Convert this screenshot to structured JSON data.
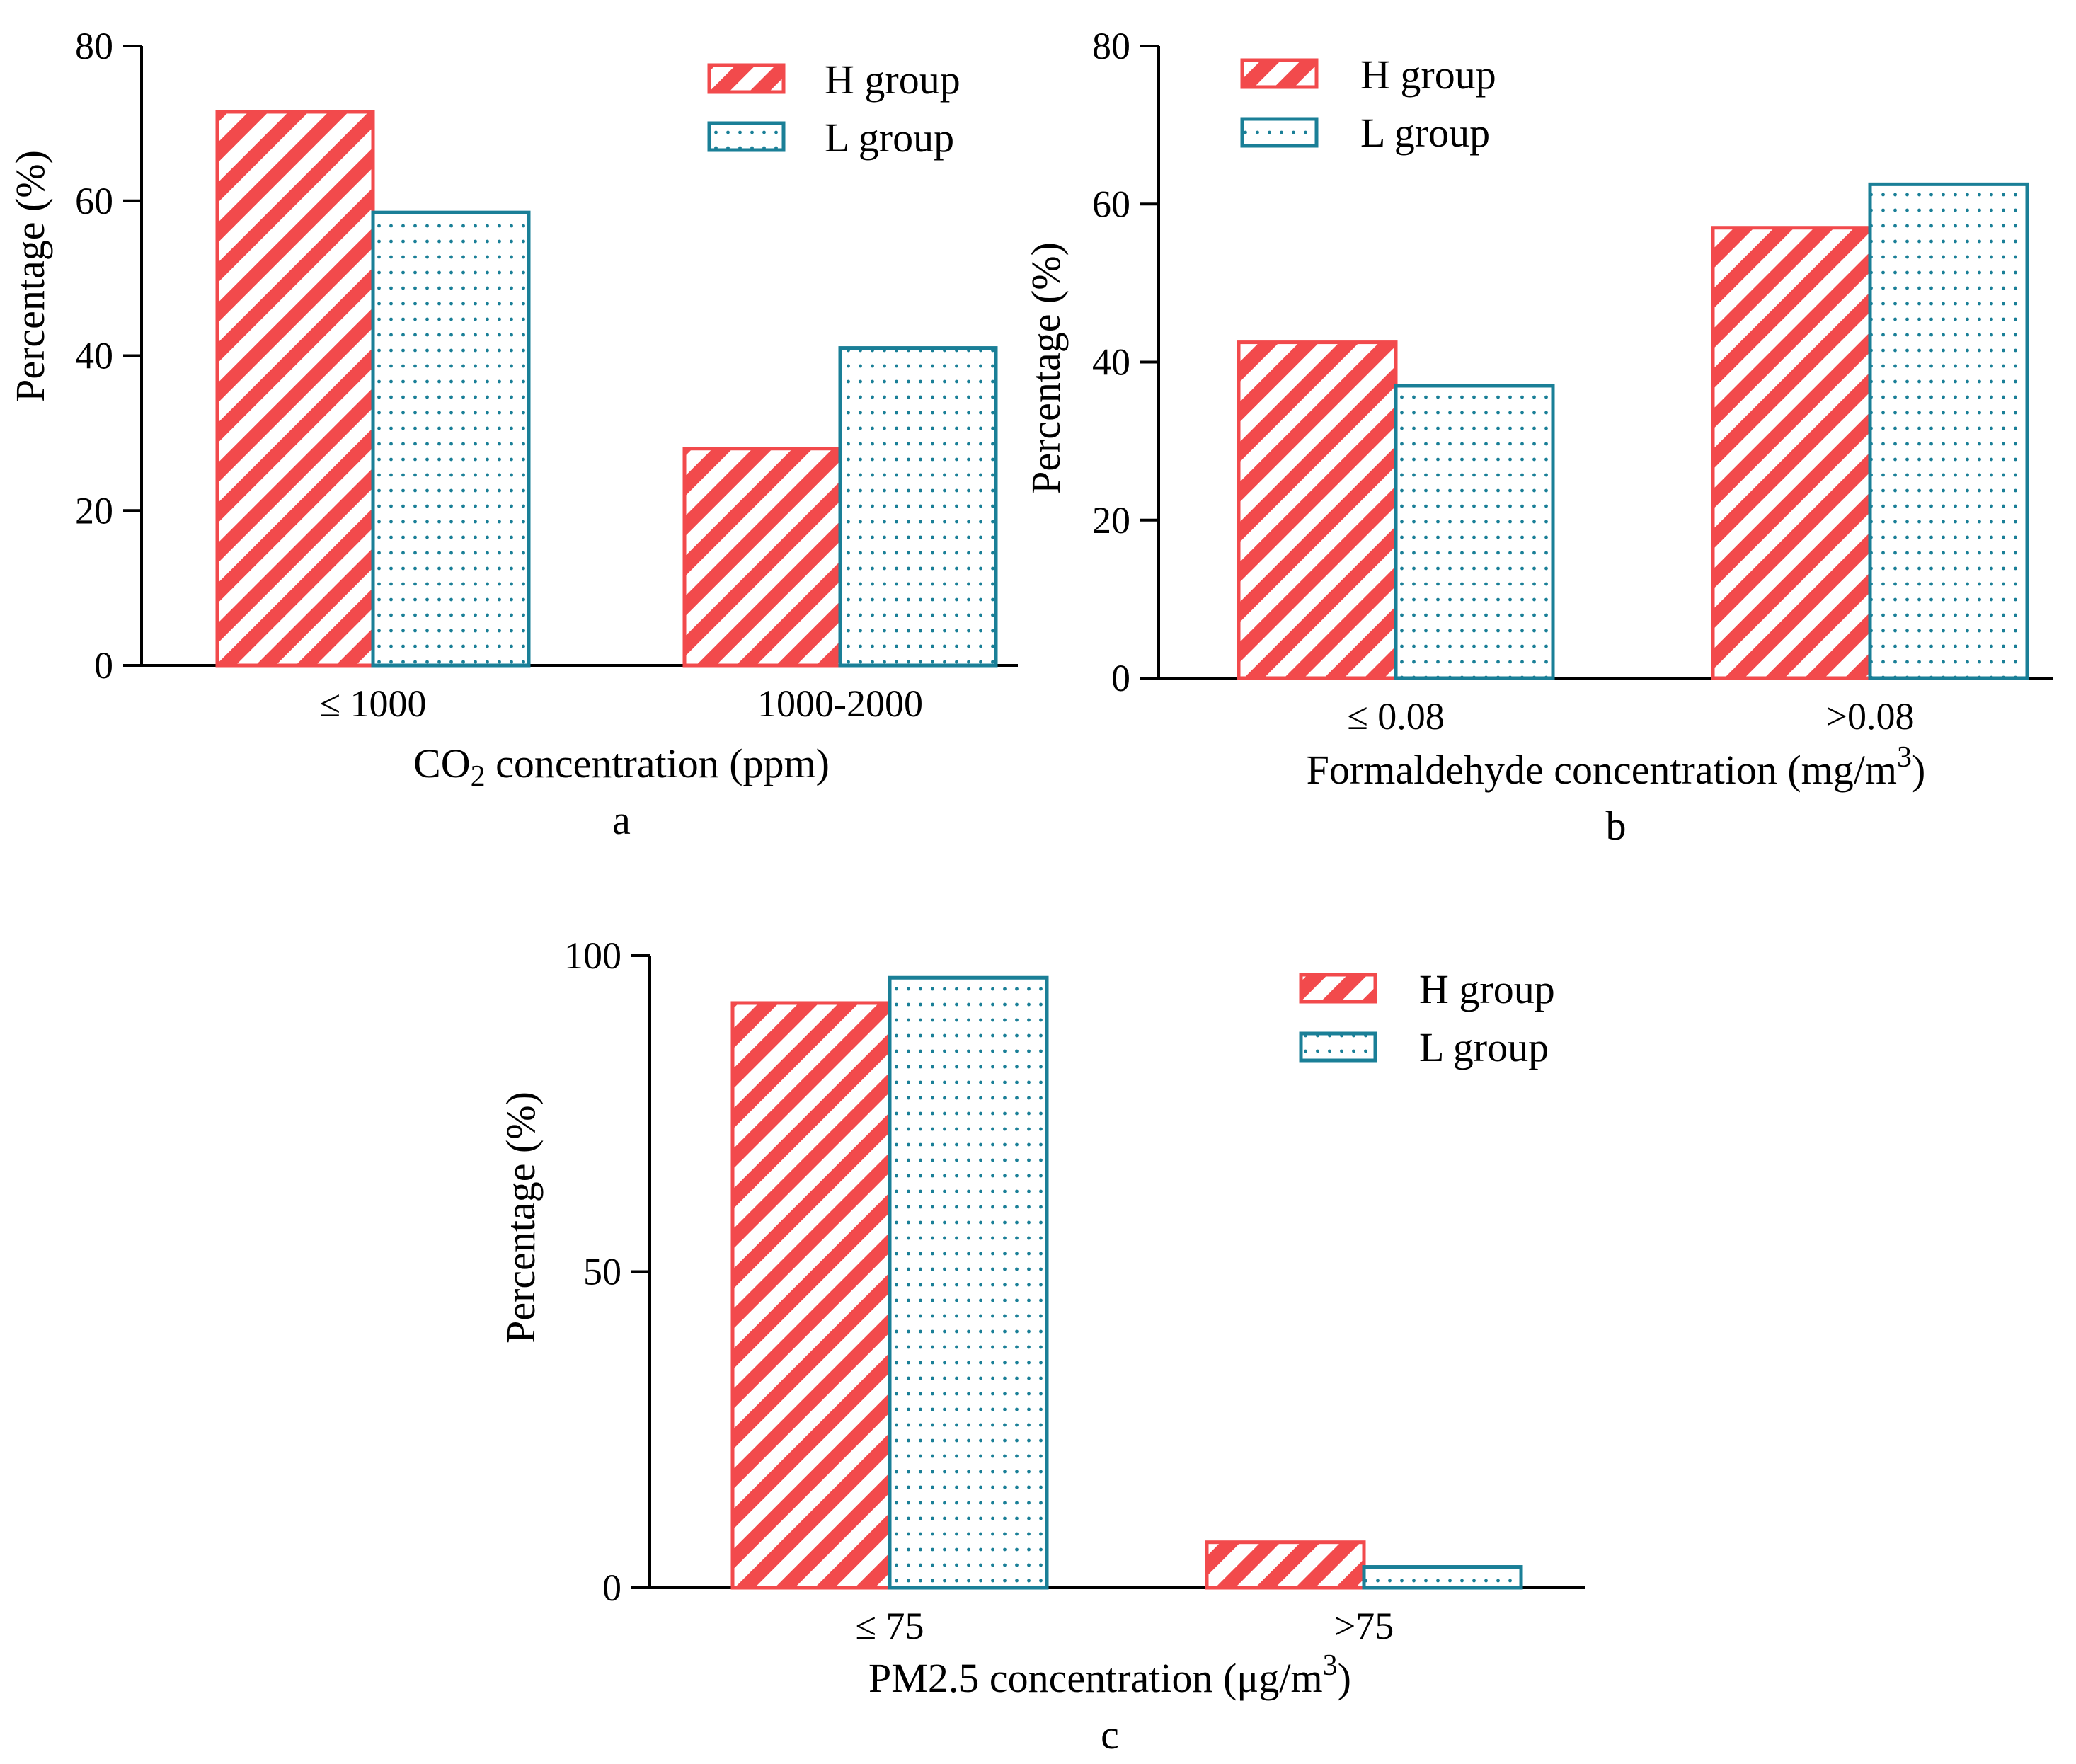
{
  "legend": {
    "h_label": "H group",
    "l_label": "L group"
  },
  "colors": {
    "h": "#f24a4c",
    "l": "#1a7f97",
    "axis": "#000000",
    "background": "#ffffff"
  },
  "chart_data": [
    {
      "type": "bar",
      "panel": "a",
      "categories": [
        "≤ 1000",
        "1000-2000"
      ],
      "series": [
        {
          "name": "H group",
          "values": [
            71.5,
            28.0
          ]
        },
        {
          "name": "L group",
          "values": [
            58.5,
            41.0
          ]
        }
      ],
      "xlabel_pre": "CO",
      "xlabel_sub": "2",
      "xlabel_post": " concentration (ppm)",
      "ylabel": "Percentage (%)",
      "ylim": [
        0,
        80
      ],
      "yticks": [
        0,
        20,
        40,
        60,
        80
      ],
      "legend_position": "top-right"
    },
    {
      "type": "bar",
      "panel": "b",
      "categories": [
        "≤ 0.08",
        ">0.08"
      ],
      "series": [
        {
          "name": "H group",
          "values": [
            42.5,
            57.0
          ]
        },
        {
          "name": "L group",
          "values": [
            37.0,
            62.5
          ]
        }
      ],
      "xlabel_pre": "Formaldehyde concentration (mg/m",
      "xlabel_sup": "3",
      "xlabel_post": ")",
      "ylabel": "Percentage (%)",
      "ylim": [
        0,
        80
      ],
      "yticks": [
        0,
        20,
        40,
        60,
        80
      ],
      "legend_position": "top-left"
    },
    {
      "type": "bar",
      "panel": "c",
      "categories": [
        "≤ 75",
        ">75"
      ],
      "series": [
        {
          "name": "H group",
          "values": [
            92.5,
            7.2
          ]
        },
        {
          "name": "L group",
          "values": [
            96.5,
            3.3
          ]
        }
      ],
      "xlabel_pre": "PM2.5 concentration (μg/m",
      "xlabel_sup": "3",
      "xlabel_post": ")",
      "ylabel": "Percentage (%)",
      "ylim": [
        0,
        100
      ],
      "yticks": [
        0,
        50,
        100
      ],
      "legend_position": "top-right"
    }
  ]
}
